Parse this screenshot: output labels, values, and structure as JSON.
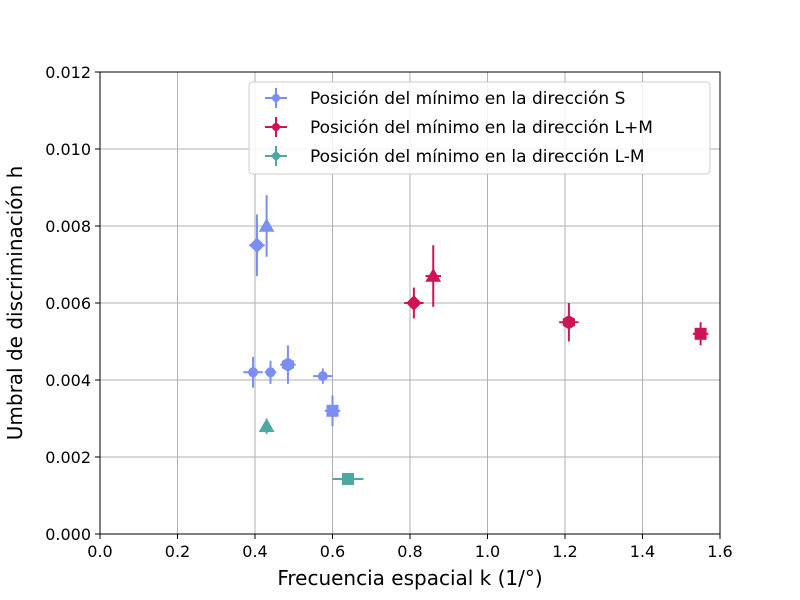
{
  "chart_data": {
    "type": "scatter",
    "xlabel": "Frecuencia espacial k (1/°)",
    "ylabel": "Umbral de discriminación h",
    "xlim": [
      0.0,
      1.6
    ],
    "ylim": [
      0.0,
      0.012
    ],
    "xticks": [
      "0.0",
      "0.2",
      "0.4",
      "0.6",
      "0.8",
      "1.0",
      "1.2",
      "1.4",
      "1.6"
    ],
    "yticks": [
      "0.000",
      "0.002",
      "0.004",
      "0.006",
      "0.008",
      "0.010",
      "0.012"
    ],
    "grid": true,
    "legend_position": "top-right",
    "series": [
      {
        "name": "Posición del mínimo en la dirección S",
        "color": "#7a8ef5",
        "points": [
          {
            "x": 0.405,
            "y": 0.0075,
            "xerr": 0.02,
            "yerr": 0.0008,
            "marker": "diamond"
          },
          {
            "x": 0.43,
            "y": 0.008,
            "xerr": 0.01,
            "yerr": 0.0008,
            "marker": "triangle"
          },
          {
            "x": 0.395,
            "y": 0.0042,
            "xerr": 0.025,
            "yerr": 0.0004,
            "marker": "circle"
          },
          {
            "x": 0.44,
            "y": 0.0042,
            "xerr": 0.015,
            "yerr": 0.0003,
            "marker": "circle"
          },
          {
            "x": 0.485,
            "y": 0.0044,
            "xerr": 0.02,
            "yerr": 0.0005,
            "marker": "hexagon"
          },
          {
            "x": 0.575,
            "y": 0.0041,
            "xerr": 0.025,
            "yerr": 0.0002,
            "marker": "circle"
          },
          {
            "x": 0.6,
            "y": 0.0032,
            "xerr": 0.02,
            "yerr": 0.0004,
            "marker": "square"
          }
        ]
      },
      {
        "name": "Posición del mínimo en la dirección L+M",
        "color": "#d01257",
        "points": [
          {
            "x": 0.81,
            "y": 0.006,
            "xerr": 0.025,
            "yerr": 0.0004,
            "marker": "diamond"
          },
          {
            "x": 0.86,
            "y": 0.0067,
            "xerr": 0.02,
            "yerr": 0.0008,
            "marker": "triangle"
          },
          {
            "x": 1.21,
            "y": 0.0055,
            "xerr": 0.025,
            "yerr": 0.0005,
            "marker": "hexagon"
          },
          {
            "x": 1.55,
            "y": 0.0052,
            "xerr": 0.02,
            "yerr": 0.0003,
            "marker": "square"
          }
        ]
      },
      {
        "name": "Posición del mínimo en la dirección L-M",
        "color": "#4ca8a0",
        "points": [
          {
            "x": 0.43,
            "y": 0.0028,
            "xerr": 0.01,
            "yerr": 0.0002,
            "marker": "triangle"
          },
          {
            "x": 0.64,
            "y": 0.00143,
            "xerr": 0.04,
            "yerr": 5e-05,
            "marker": "square"
          }
        ]
      }
    ]
  }
}
